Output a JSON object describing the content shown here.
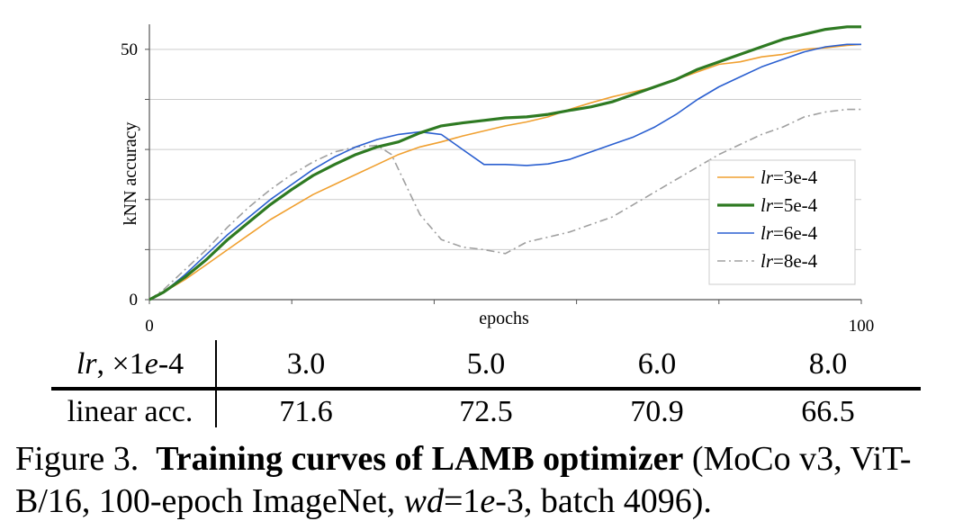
{
  "chart_data": {
    "type": "line",
    "xlabel": "epochs",
    "ylabel": "kNN accuracy",
    "xlim": [
      0,
      100
    ],
    "ylim": [
      0,
      55
    ],
    "x_tick_labels": [
      "0",
      "100"
    ],
    "y_tick_labels": [
      "0",
      "50"
    ],
    "grid": "horizontal",
    "legend_position": "lower-right",
    "series": [
      {
        "name": "lr=3e-4",
        "color": "#f0a030",
        "style": "solid",
        "x": [
          0,
          2,
          5,
          8,
          11,
          14,
          17,
          20,
          23,
          26,
          29,
          32,
          35,
          38,
          41,
          44,
          47,
          50,
          53,
          56,
          59,
          62,
          65,
          68,
          71,
          74,
          77,
          80,
          83,
          86,
          89,
          92,
          95,
          98,
          100
        ],
        "y": [
          0,
          1.5,
          4,
          7,
          10,
          13,
          16,
          18.5,
          21,
          23,
          25,
          27,
          29,
          30.5,
          31.5,
          32.7,
          33.7,
          34.7,
          35.5,
          36.5,
          38,
          39.3,
          40.5,
          41.5,
          42.5,
          44,
          45.5,
          47,
          47.5,
          48.5,
          49,
          50,
          50.3,
          50.8,
          51
        ]
      },
      {
        "name": "lr=5e-4",
        "color": "#2e7a22",
        "style": "solid",
        "x": [
          0,
          2,
          5,
          8,
          11,
          14,
          17,
          20,
          23,
          26,
          29,
          32,
          35,
          38,
          41,
          44,
          47,
          50,
          53,
          56,
          59,
          62,
          65,
          68,
          71,
          74,
          77,
          80,
          83,
          86,
          89,
          92,
          95,
          98,
          100
        ],
        "y": [
          0,
          1.5,
          4.5,
          8,
          12,
          15.5,
          19,
          22,
          24.8,
          27,
          29,
          30.5,
          31.5,
          33.3,
          34.7,
          35.3,
          35.8,
          36.3,
          36.5,
          37,
          37.8,
          38.5,
          39.5,
          41,
          42.5,
          44,
          46,
          47.5,
          49,
          50.5,
          52,
          53,
          54,
          54.5,
          54.5
        ]
      },
      {
        "name": "lr=6e-4",
        "color": "#2a5fd0",
        "style": "solid",
        "x": [
          0,
          2,
          5,
          8,
          11,
          14,
          17,
          20,
          23,
          26,
          29,
          32,
          35,
          38,
          41,
          44,
          47,
          50,
          53,
          56,
          59,
          62,
          65,
          68,
          71,
          74,
          77,
          80,
          83,
          86,
          89,
          92,
          95,
          98,
          100
        ],
        "y": [
          0,
          1.5,
          5,
          9,
          13,
          16.5,
          20,
          23,
          26,
          28.5,
          30.5,
          32,
          33,
          33.5,
          33,
          30,
          27,
          27,
          26.8,
          27.1,
          28,
          29.5,
          31,
          32.5,
          34.5,
          37,
          40,
          42.5,
          44.5,
          46.5,
          48,
          49.5,
          50.5,
          51,
          51
        ]
      },
      {
        "name": "lr=8e-4",
        "color": "#a0a0a0",
        "style": "dashdot",
        "x": [
          0,
          2,
          5,
          8,
          11,
          14,
          17,
          20,
          23,
          26,
          29,
          32,
          34,
          35,
          38,
          41,
          44,
          47,
          50,
          53,
          56,
          59,
          62,
          65,
          68,
          71,
          74,
          77,
          80,
          83,
          86,
          89,
          92,
          95,
          98,
          100
        ],
        "y": [
          0,
          2,
          6,
          10,
          14.5,
          18.5,
          22,
          25,
          27.5,
          29.5,
          30.5,
          30.8,
          29,
          26,
          17,
          12,
          10.5,
          10,
          9.2,
          11.5,
          12.5,
          13.5,
          15,
          16.5,
          19,
          21.5,
          24,
          26.5,
          29,
          31,
          33,
          34.5,
          36.5,
          37.5,
          38,
          38
        ]
      }
    ]
  },
  "legend": {
    "entries": [
      {
        "prefix": "lr",
        "value": "=3e-4"
      },
      {
        "prefix": "lr",
        "value": "=5e-4"
      },
      {
        "prefix": "lr",
        "value": "=6e-4"
      },
      {
        "prefix": "lr",
        "value": "=8e-4"
      }
    ]
  },
  "table": {
    "header": {
      "label_italic": "lr",
      "label_rest": ", ×1",
      "label_e": "e",
      "label_tail": "-4",
      "values": [
        "3.0",
        "5.0",
        "6.0",
        "8.0"
      ]
    },
    "row": {
      "label": "linear acc.",
      "values": [
        "71.6",
        "72.5",
        "70.9",
        "66.5"
      ]
    }
  },
  "caption": {
    "prefix": "Figure 3.",
    "title": "Training curves of LAMB optimizer",
    "part1": " (MoCo v3, ViT-B/16, 100-epoch ImageNet, ",
    "wd_var": "wd",
    "wd_eq": "=1",
    "wd_e": "e",
    "wd_val": "-3, batch 4096)."
  }
}
